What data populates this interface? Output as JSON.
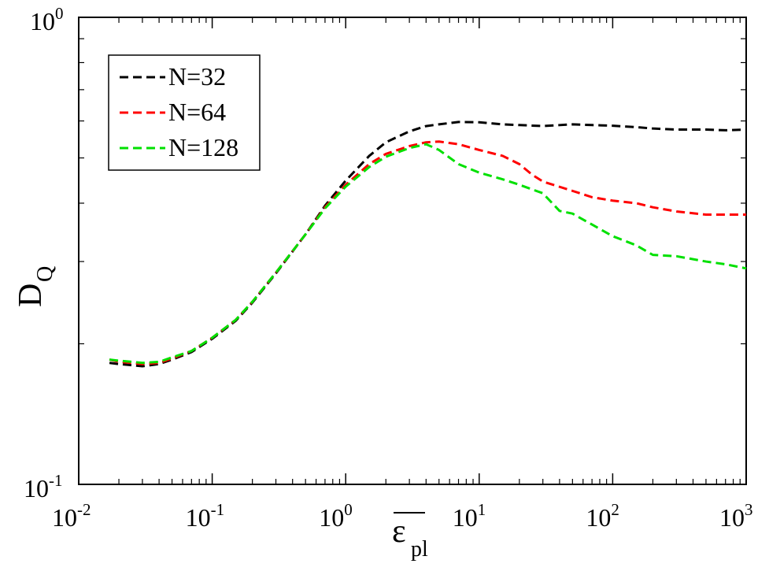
{
  "chart_data": {
    "type": "line",
    "title": "",
    "xlabel": "ε",
    "xlabel_sub": "pl",
    "ylabel": "D",
    "ylabel_sub": "Q",
    "xscale": "log",
    "yscale": "log",
    "xlim": [
      0.01,
      1000
    ],
    "ylim": [
      0.1,
      1
    ],
    "legend_position": "top-left",
    "x_ticks": [
      {
        "base": "10",
        "exp": "-2"
      },
      {
        "base": "10",
        "exp": "-1"
      },
      {
        "base": "10",
        "exp": "0"
      },
      {
        "base": "10",
        "exp": "1"
      },
      {
        "base": "10",
        "exp": "2"
      },
      {
        "base": "10",
        "exp": "3"
      }
    ],
    "y_ticks": [
      {
        "base": "10",
        "exp": "-1"
      },
      {
        "base": "10",
        "exp": "0"
      }
    ],
    "series": [
      {
        "name": "N=32",
        "color": "#000000",
        "x": [
          0.017,
          0.02,
          0.025,
          0.03,
          0.04,
          0.05,
          0.07,
          0.1,
          0.15,
          0.2,
          0.3,
          0.5,
          0.7,
          1.0,
          1.5,
          2.0,
          3.0,
          4.0,
          5.0,
          7.0,
          10,
          15,
          20,
          30,
          50,
          70,
          100,
          150,
          200,
          300,
          500,
          700,
          1000
        ],
        "y": [
          0.182,
          0.181,
          0.18,
          0.179,
          0.181,
          0.185,
          0.192,
          0.205,
          0.224,
          0.245,
          0.283,
          0.343,
          0.395,
          0.447,
          0.505,
          0.54,
          0.57,
          0.585,
          0.59,
          0.597,
          0.596,
          0.59,
          0.588,
          0.585,
          0.59,
          0.588,
          0.586,
          0.582,
          0.578,
          0.575,
          0.575,
          0.573,
          0.575
        ]
      },
      {
        "name": "N=64",
        "color": "#ff0000",
        "x": [
          0.017,
          0.02,
          0.025,
          0.03,
          0.04,
          0.05,
          0.07,
          0.1,
          0.15,
          0.2,
          0.3,
          0.5,
          0.7,
          1.0,
          1.5,
          2.0,
          3.0,
          4.0,
          5.0,
          7.0,
          10,
          15,
          20,
          25,
          30,
          50,
          70,
          100,
          150,
          200,
          300,
          500,
          700,
          1000
        ],
        "y": [
          0.185,
          0.183,
          0.182,
          0.181,
          0.182,
          0.186,
          0.193,
          0.206,
          0.225,
          0.246,
          0.284,
          0.343,
          0.392,
          0.438,
          0.485,
          0.51,
          0.53,
          0.54,
          0.542,
          0.535,
          0.52,
          0.505,
          0.485,
          0.46,
          0.445,
          0.425,
          0.412,
          0.405,
          0.4,
          0.392,
          0.384,
          0.378,
          0.378,
          0.378
        ]
      },
      {
        "name": "N=128",
        "color": "#00e000",
        "x": [
          0.017,
          0.02,
          0.025,
          0.03,
          0.04,
          0.05,
          0.07,
          0.1,
          0.15,
          0.2,
          0.3,
          0.5,
          0.7,
          1.0,
          1.5,
          2.0,
          3.0,
          4.0,
          5.0,
          7.0,
          10,
          15,
          20,
          30,
          40,
          50,
          70,
          100,
          150,
          200,
          300,
          500,
          700,
          1000
        ],
        "y": [
          0.185,
          0.184,
          0.183,
          0.182,
          0.183,
          0.187,
          0.193,
          0.206,
          0.225,
          0.246,
          0.284,
          0.343,
          0.39,
          0.434,
          0.478,
          0.503,
          0.525,
          0.535,
          0.52,
          0.485,
          0.465,
          0.45,
          0.438,
          0.42,
          0.385,
          0.38,
          0.36,
          0.34,
          0.325,
          0.31,
          0.308,
          0.3,
          0.296,
          0.29
        ]
      }
    ]
  }
}
